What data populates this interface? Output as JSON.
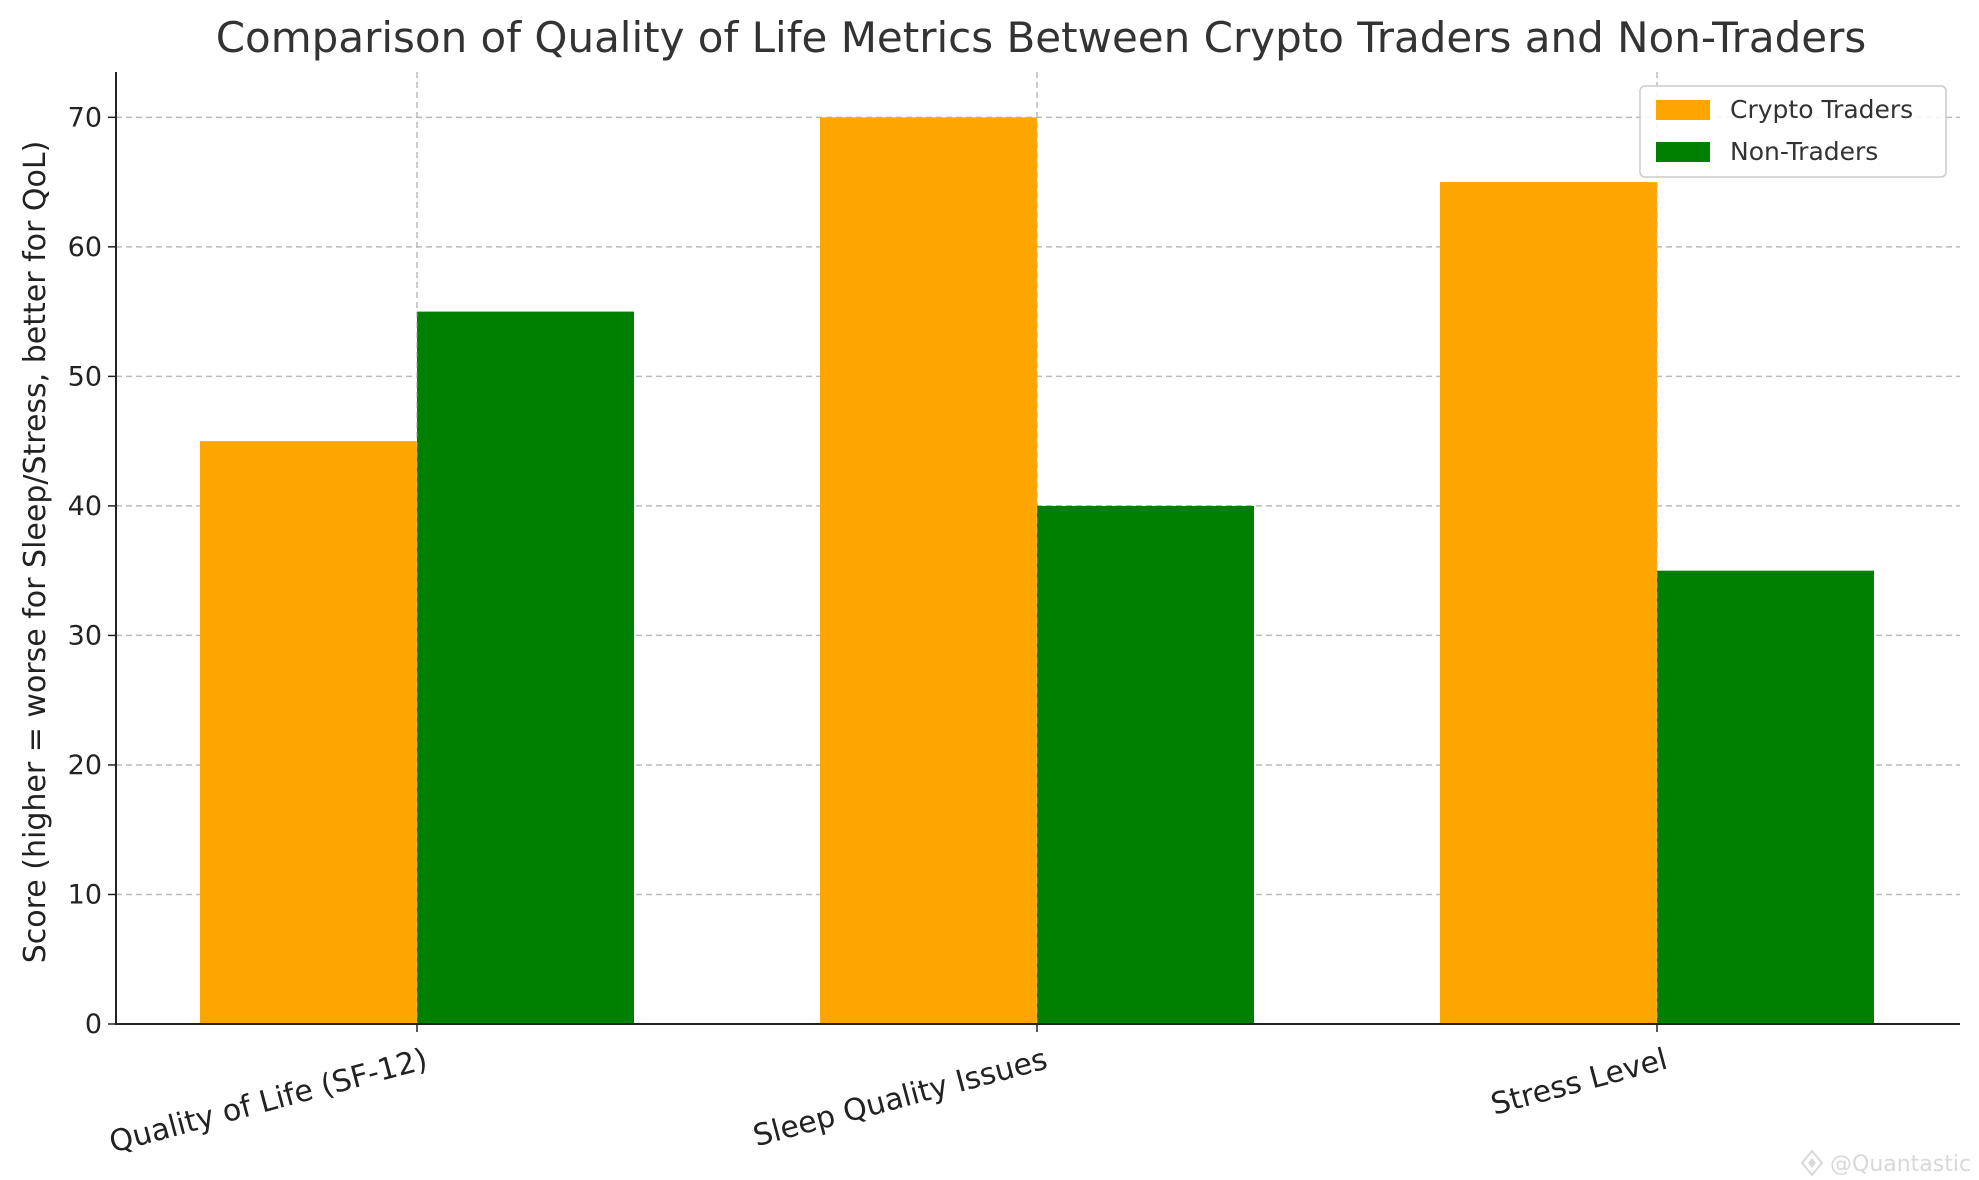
{
  "chart_data": {
    "type": "bar",
    "title": "Comparison of Quality of Life Metrics Between Crypto Traders and Non-Traders",
    "xlabel": "",
    "ylabel": "Score (higher = worse for Sleep/Stress, better for QoL)",
    "categories": [
      "Quality of Life (SF-12)",
      "Sleep Quality Issues",
      "Stress Level"
    ],
    "series": [
      {
        "name": "Crypto Traders",
        "values": [
          45,
          70,
          65
        ],
        "color": "#FFA500"
      },
      {
        "name": "Non-Traders",
        "values": [
          55,
          40,
          35
        ],
        "color": "#008000"
      }
    ],
    "ylim": [
      0,
      73.5
    ],
    "yticks": [
      0,
      10,
      20,
      30,
      40,
      50,
      60,
      70
    ],
    "grid": true,
    "legend_position": "top-right",
    "x_tick_rotation_deg": 15
  },
  "watermark": {
    "text": "@Quantastic",
    "icon": "diamond-logo-icon"
  }
}
